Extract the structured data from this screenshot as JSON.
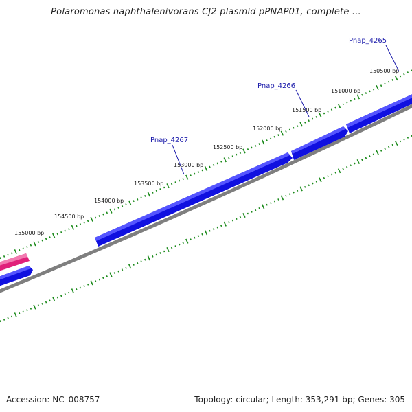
{
  "title": "Polaromonas naphthalenivorans CJ2 plasmid pPNAP01, complete ...",
  "accession_text": "Accession: NC_008757",
  "summary_text": "Topology: circular; Length: 353,291 bp; Genes: 305",
  "colors": {
    "backbone": "#7f7f7f",
    "forward_gene": "#1010e0",
    "reverse_gene": "#e0207a",
    "ticks": "#1a8a1a",
    "gene_label": "#1a1aaa"
  },
  "scale_labels": [
    "150500 bp",
    "151000 bp",
    "151500 bp",
    "152000 bp",
    "152500 bp",
    "153000 bp",
    "153500 bp",
    "154000 bp",
    "154500 bp",
    "155000 bp"
  ],
  "gene_labels": [
    "Pnap_4265",
    "Pnap_4266",
    "Pnap_4267"
  ]
}
